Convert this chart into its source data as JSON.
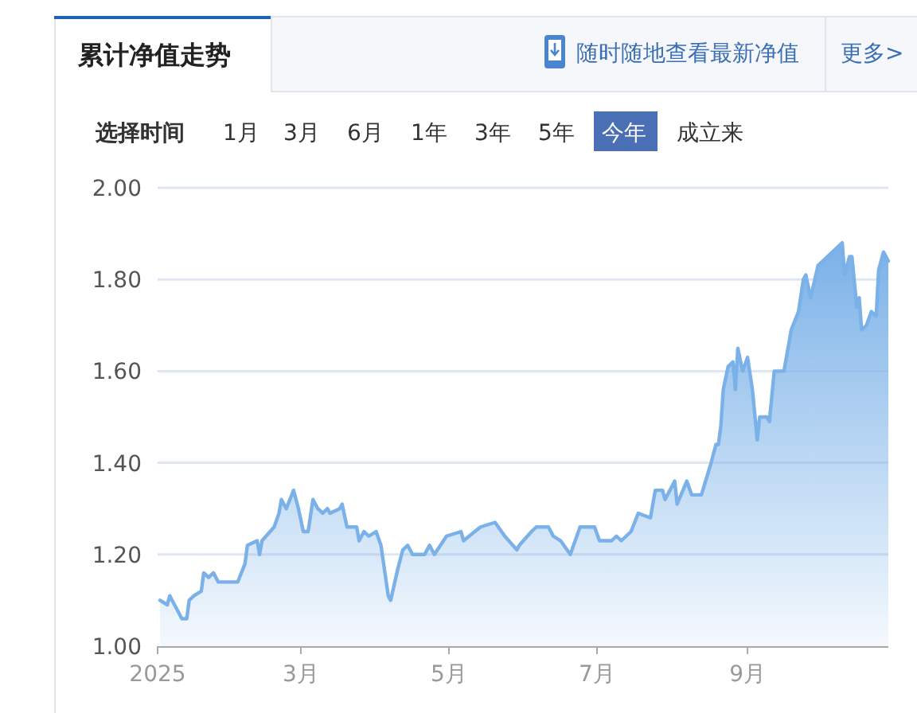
{
  "chart_data": {
    "type": "area",
    "title": "累计净值走势",
    "annotations": [
      "随时随地查看最新净值",
      "更多>",
      "选择时间",
      "1月",
      "3月",
      "6月",
      "1年",
      "3年",
      "5年",
      "今年",
      "成立来"
    ],
    "x": [
      "2025-01-02",
      "2025-01-05",
      "2025-01-06",
      "2025-01-08",
      "2025-01-11",
      "2025-01-13",
      "2025-01-14",
      "2025-01-16",
      "2025-01-19",
      "2025-01-20",
      "2025-01-22",
      "2025-01-24",
      "2025-01-26",
      "2025-02-03",
      "2025-02-06",
      "2025-02-07",
      "2025-02-11",
      "2025-02-12",
      "2025-02-13",
      "2025-02-18",
      "2025-02-20",
      "2025-02-21",
      "2025-02-23",
      "2025-02-26",
      "2025-02-28",
      "2025-03-02",
      "2025-03-04",
      "2025-03-06",
      "2025-03-08",
      "2025-03-10",
      "2025-03-12",
      "2025-03-13",
      "2025-03-17",
      "2025-03-18",
      "2025-03-20",
      "2025-03-24",
      "2025-03-25",
      "2025-03-27",
      "2025-03-29",
      "2025-04-01",
      "2025-04-03",
      "2025-04-06",
      "2025-04-07",
      "2025-04-10",
      "2025-04-12",
      "2025-04-14",
      "2025-04-16",
      "2025-04-21",
      "2025-04-23",
      "2025-04-25",
      "2025-04-30",
      "2025-05-06",
      "2025-05-07",
      "2025-05-14",
      "2025-05-20",
      "2025-05-24",
      "2025-05-29",
      "2025-05-30",
      "2025-06-04",
      "2025-06-06",
      "2025-06-11",
      "2025-06-13",
      "2025-06-16",
      "2025-06-20",
      "2025-06-24",
      "2025-06-30",
      "2025-07-02",
      "2025-07-07",
      "2025-07-09",
      "2025-07-11",
      "2025-07-15",
      "2025-07-18",
      "2025-07-23",
      "2025-07-25",
      "2025-07-28",
      "2025-07-29",
      "2025-08-02",
      "2025-08-03",
      "2025-08-07",
      "2025-08-09",
      "2025-08-13",
      "2025-08-17",
      "2025-08-19",
      "2025-08-20",
      "2025-08-21",
      "2025-08-22",
      "2025-08-24",
      "2025-08-26",
      "2025-08-27",
      "2025-08-28",
      "2025-08-30",
      "2025-09-01",
      "2025-09-03",
      "2025-09-05",
      "2025-09-06",
      "2025-09-09",
      "2025-09-10",
      "2025-09-12",
      "2025-09-16",
      "2025-09-19",
      "2025-09-22",
      "2025-09-24",
      "2025-09-25",
      "2025-09-27",
      "2025-09-30",
      "2025-10-04",
      "2025-10-10",
      "2025-10-11",
      "2025-10-13",
      "2025-10-14",
      "2025-10-16",
      "2025-10-17",
      "2025-10-18",
      "2025-10-20",
      "2025-10-22",
      "2025-10-24",
      "2025-10-25",
      "2025-10-27",
      "2025-10-29"
    ],
    "series": [
      {
        "color": "#7ab1e8",
        "values": [
          1.1,
          1.09,
          1.11,
          1.09,
          1.06,
          1.06,
          1.1,
          1.11,
          1.12,
          1.16,
          1.15,
          1.16,
          1.14,
          1.14,
          1.18,
          1.22,
          1.23,
          1.2,
          1.23,
          1.26,
          1.29,
          1.32,
          1.3,
          1.34,
          1.3,
          1.25,
          1.25,
          1.32,
          1.3,
          1.29,
          1.3,
          1.29,
          1.3,
          1.31,
          1.26,
          1.26,
          1.23,
          1.25,
          1.24,
          1.25,
          1.22,
          1.11,
          1.1,
          1.17,
          1.21,
          1.22,
          1.2,
          1.2,
          1.22,
          1.2,
          1.24,
          1.25,
          1.23,
          1.26,
          1.27,
          1.24,
          1.21,
          1.22,
          1.25,
          1.26,
          1.26,
          1.24,
          1.23,
          1.2,
          1.26,
          1.26,
          1.23,
          1.23,
          1.24,
          1.23,
          1.25,
          1.29,
          1.28,
          1.34,
          1.34,
          1.32,
          1.36,
          1.31,
          1.36,
          1.33,
          1.33,
          1.4,
          1.44,
          1.44,
          1.48,
          1.56,
          1.61,
          1.62,
          1.56,
          1.65,
          1.6,
          1.63,
          1.56,
          1.45,
          1.5,
          1.5,
          1.49,
          1.6,
          1.6,
          1.69,
          1.73,
          1.8,
          1.81,
          1.76,
          1.83,
          1.85,
          1.88,
          1.81,
          1.85,
          1.85,
          1.74,
          1.76,
          1.69,
          1.7,
          1.73,
          1.72,
          1.82,
          1.86,
          1.84
        ]
      }
    ],
    "xlim": [
      "2025-01-01",
      "2025-10-29"
    ],
    "xticks": [
      {
        "value": "2025-01-01",
        "label": "2025"
      },
      {
        "value": "2025-03-01",
        "label": "3月"
      },
      {
        "value": "2025-05-01",
        "label": "5月"
      },
      {
        "value": "2025-07-01",
        "label": "7月"
      },
      {
        "value": "2025-09-01",
        "label": "9月"
      }
    ],
    "ylim": [
      1.0,
      2.0
    ],
    "yticks": [
      {
        "value": 1.0,
        "label": "1.00"
      },
      {
        "value": 1.2,
        "label": "1.20"
      },
      {
        "value": 1.4,
        "label": "1.40"
      },
      {
        "value": 1.6,
        "label": "1.60"
      },
      {
        "value": 1.8,
        "label": "1.80"
      },
      {
        "value": 2.0,
        "label": "2.00"
      }
    ],
    "grid": "y"
  }
}
